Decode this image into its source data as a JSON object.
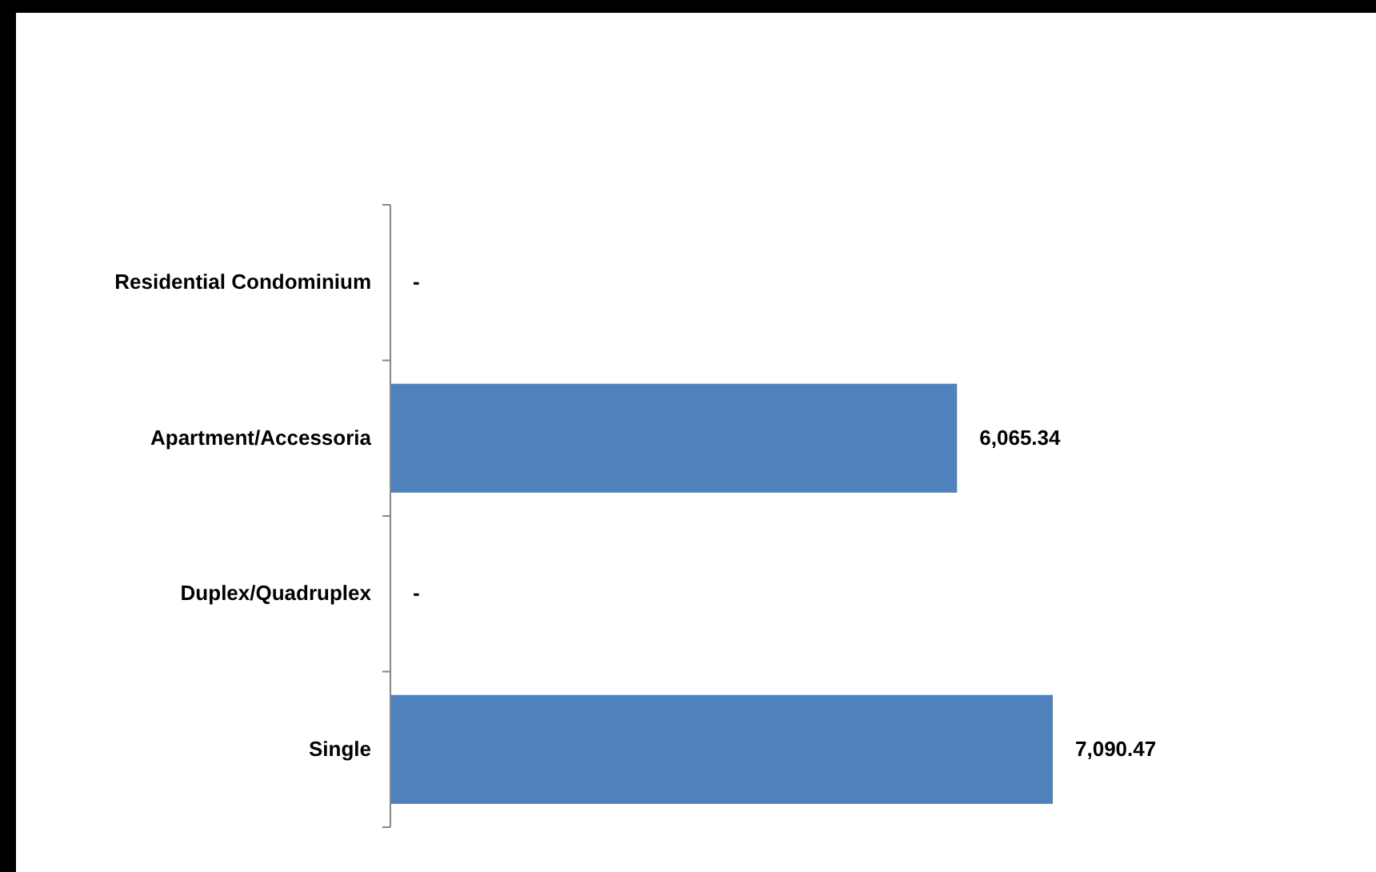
{
  "chart_data": {
    "type": "bar",
    "orientation": "horizontal",
    "categories": [
      "Residential Condominium",
      "Apartment/Accessoria",
      "Duplex/Quadruplex",
      "Single"
    ],
    "values": [
      0,
      6065.34,
      0,
      7090.47
    ],
    "color": "#4f81bd",
    "value_labels": [
      "-",
      "6,065.34",
      "-",
      "7,090.47"
    ]
  }
}
